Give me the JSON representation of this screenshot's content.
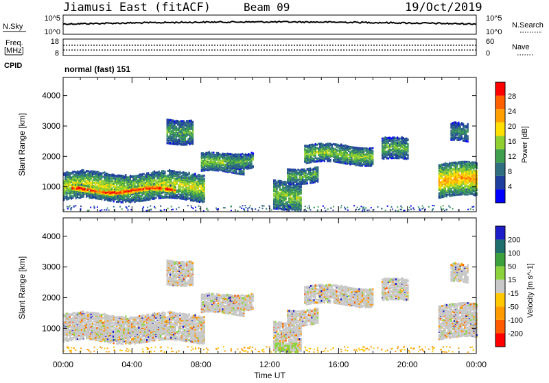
{
  "header": {
    "station": "Jiamusi East (fitACF)",
    "beam": "Beam 09",
    "date": "19/Oct/2019"
  },
  "top_panels": {
    "nsky_label": "N.Sky",
    "nsearch_label": "N.Search",
    "freq_label_line1": "Freq.",
    "freq_label_line2": "[MHz]",
    "nave_label": "Nave",
    "cpid_label": "CPID",
    "cpid_value": "normal (fast) 151",
    "nsky_ticks": [
      "10^5",
      "10^0"
    ],
    "nsearch_ticks": [
      "10^5",
      "10^0"
    ],
    "freq_ticks": [
      "18",
      "8"
    ],
    "nave_ticks": [
      "60",
      "0"
    ]
  },
  "colors": {
    "power_scale": [
      "#0000ff",
      "#1f3f9f",
      "#2f6f7f",
      "#3f9f4f",
      "#8fcf2f",
      "#ffdf00",
      "#ffa000",
      "#ff6000",
      "#ff0000"
    ],
    "velocity_scale": [
      "#ff0000",
      "#ff5a00",
      "#ff9a00",
      "#ffc800",
      "#c8c8c8",
      "#8cd23c",
      "#3ca03c",
      "#1e6e6e",
      "#1e1ec8"
    ]
  },
  "chart_data": [
    {
      "type": "heatmap",
      "name": "power",
      "ylabel": "Slant Range [km]",
      "yticks": [
        "4000",
        "3000",
        "2000",
        "1000"
      ],
      "ylim": [
        180,
        4600
      ],
      "xlim": [
        0,
        24
      ],
      "xticks": [
        "00:00",
        "04:00",
        "08:00",
        "12:00",
        "16:00",
        "20:00",
        "00:00"
      ],
      "colorbar_label": "Power [dB]",
      "colorbar_ticks": [
        "28",
        "24",
        "20",
        "16",
        "12",
        "8",
        "4"
      ],
      "regions": [
        {
          "x": [
            0.0,
            8.2
          ],
          "range_low": [
            600,
            1500
          ],
          "value": 14
        },
        {
          "x": [
            0.5,
            6.5
          ],
          "range_low": [
            800,
            1050
          ],
          "value": 24
        },
        {
          "x": [
            6.0,
            7.5
          ],
          "range_low": [
            2500,
            3300
          ],
          "value": 10
        },
        {
          "x": [
            8.0,
            10.5
          ],
          "range_low": [
            1500,
            2100
          ],
          "value": 12
        },
        {
          "x": [
            9.5,
            11.0
          ],
          "range_low": [
            1700,
            2200
          ],
          "value": 10
        },
        {
          "x": [
            12.2,
            13.8
          ],
          "range_low": [
            250,
            1200
          ],
          "value": 12
        },
        {
          "x": [
            13.0,
            14.8
          ],
          "range_low": [
            1200,
            1700
          ],
          "value": 10
        },
        {
          "x": [
            14.0,
            18.0
          ],
          "range_low": [
            1800,
            2400
          ],
          "value": 12
        },
        {
          "x": [
            18.5,
            20.0
          ],
          "range_low": [
            1900,
            2600
          ],
          "value": 10
        },
        {
          "x": [
            21.8,
            24.0
          ],
          "range_low": [
            700,
            1800
          ],
          "value": 18
        },
        {
          "x": [
            22.5,
            23.5
          ],
          "range_low": [
            2500,
            3100
          ],
          "value": 8
        }
      ]
    },
    {
      "type": "heatmap",
      "name": "velocity",
      "ylabel": "Slant Range [km]",
      "yticks": [
        "4000",
        "3000",
        "2000",
        "1000"
      ],
      "ylim": [
        180,
        4600
      ],
      "xlim": [
        0,
        24
      ],
      "xlabel": "Time UT",
      "xticks": [
        "00:00",
        "04:00",
        "08:00",
        "12:00",
        "16:00",
        "20:00",
        "00:00"
      ],
      "colorbar_label": "Velocity [m s^-1]",
      "colorbar_ticks": [
        "200",
        "100",
        "50",
        "15",
        "-15",
        "-50",
        "-100",
        "-200"
      ]
    }
  ]
}
